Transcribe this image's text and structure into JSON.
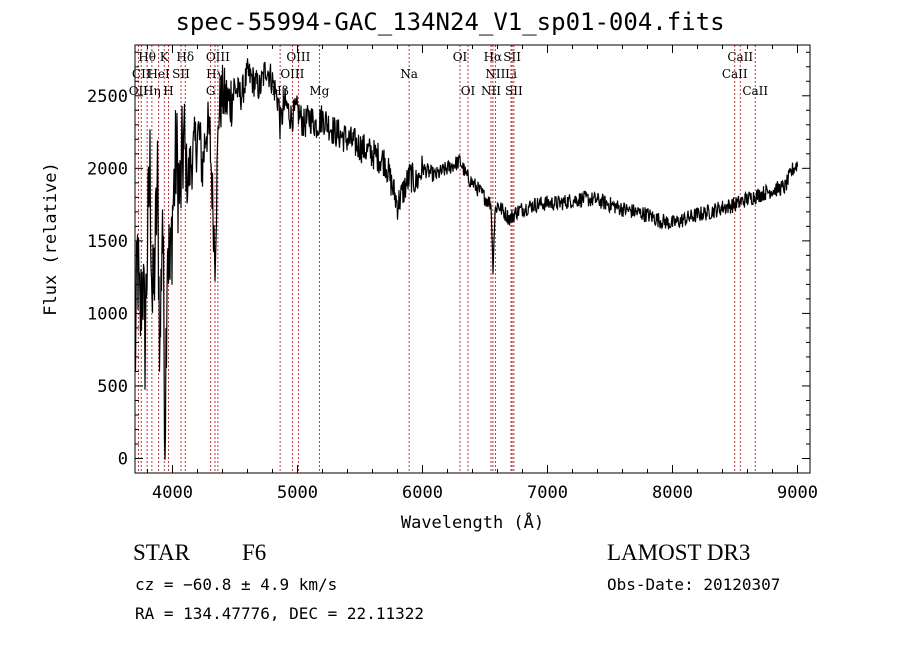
{
  "chart_data": {
    "type": "line",
    "title": "spec-55994-GAC_134N24_V1_sp01-004.fits",
    "xlabel": "Wavelength (Å)",
    "ylabel": "Flux (relative)",
    "xlim": [
      3700,
      9100
    ],
    "ylim": [
      -100,
      2850
    ],
    "x_ticks": [
      4000,
      5000,
      6000,
      7000,
      8000,
      9000
    ],
    "y_ticks": [
      0,
      500,
      1000,
      1500,
      2000,
      2500
    ],
    "series": [
      {
        "name": "flux",
        "x": [
          3700,
          3720,
          3740,
          3760,
          3780,
          3800,
          3820,
          3840,
          3860,
          3880,
          3900,
          3920,
          3940,
          3960,
          3980,
          4000,
          4030,
          4060,
          4090,
          4120,
          4150,
          4180,
          4210,
          4240,
          4270,
          4300,
          4330,
          4340,
          4370,
          4400,
          4450,
          4500,
          4550,
          4600,
          4650,
          4700,
          4750,
          4800,
          4850,
          4860,
          4900,
          4950,
          5000,
          5050,
          5100,
          5150,
          5200,
          5300,
          5400,
          5500,
          5600,
          5700,
          5750,
          5800,
          5850,
          5900,
          5950,
          6000,
          6100,
          6200,
          6300,
          6350,
          6400,
          6450,
          6500,
          6550,
          6563,
          6580,
          6600,
          6650,
          6700,
          6750,
          6800,
          6900,
          7000,
          7100,
          7200,
          7300,
          7400,
          7500,
          7600,
          7700,
          7800,
          7900,
          8000,
          8100,
          8200,
          8300,
          8400,
          8500,
          8600,
          8700,
          8800,
          8900,
          8960,
          9000
        ],
        "y": [
          600,
          1400,
          900,
          1300,
          800,
          1500,
          2000,
          1000,
          1400,
          1900,
          700,
          1800,
          200,
          1600,
          1200,
          1700,
          2100,
          1800,
          2200,
          1900,
          2050,
          2150,
          2250,
          2000,
          2300,
          2200,
          1600,
          1400,
          2400,
          2500,
          2450,
          2550,
          2500,
          2650,
          2600,
          2550,
          2700,
          2600,
          2450,
          2300,
          2450,
          2350,
          2400,
          2300,
          2350,
          2300,
          2350,
          2250,
          2200,
          2150,
          2100,
          2050,
          1900,
          1750,
          1850,
          1950,
          1900,
          2000,
          1950,
          2000,
          2050,
          1950,
          1900,
          1850,
          1800,
          1750,
          1300,
          1700,
          1750,
          1700,
          1650,
          1700,
          1720,
          1750,
          1760,
          1760,
          1780,
          1790,
          1780,
          1750,
          1720,
          1700,
          1680,
          1640,
          1620,
          1650,
          1680,
          1700,
          1730,
          1750,
          1790,
          1820,
          1850,
          1870,
          1990,
          2030
        ]
      }
    ],
    "spectral_lines": [
      {
        "label": "Hθ",
        "x": 3797,
        "row": 1
      },
      {
        "label": "CII",
        "x": 3750,
        "row": 2
      },
      {
        "label": "OII",
        "x": 3727,
        "row": 3
      },
      {
        "label": "Hη",
        "x": 3835,
        "row": 3
      },
      {
        "label": "HeI",
        "x": 3889,
        "row": 2
      },
      {
        "label": "K",
        "x": 3934,
        "row": 1
      },
      {
        "label": "H",
        "x": 3968,
        "row": 3
      },
      {
        "label": "Hδ",
        "x": 4102,
        "row": 1
      },
      {
        "label": "SII",
        "x": 4068,
        "row": 2
      },
      {
        "label": "OIII",
        "x": 4363,
        "row": 1
      },
      {
        "label": "Hγ",
        "x": 4340,
        "row": 2
      },
      {
        "label": "G",
        "x": 4305,
        "row": 3
      },
      {
        "label": "OIII",
        "x": 5007,
        "row": 1
      },
      {
        "label": "OIII",
        "x": 4959,
        "row": 2
      },
      {
        "label": "Hβ",
        "x": 4861,
        "row": 3
      },
      {
        "label": "Mg",
        "x": 5175,
        "row": 3
      },
      {
        "label": "Na",
        "x": 5893,
        "row": 2
      },
      {
        "label": "OI",
        "x": 6300,
        "row": 1
      },
      {
        "label": "OI",
        "x": 6364,
        "row": 3
      },
      {
        "label": "Hα",
        "x": 6563,
        "row": 1
      },
      {
        "label": "SII",
        "x": 6717,
        "row": 1
      },
      {
        "label": "NII",
        "x": 6583,
        "row": 2
      },
      {
        "label": "Li",
        "x": 6708,
        "row": 2
      },
      {
        "label": "NII",
        "x": 6548,
        "row": 3
      },
      {
        "label": "SII",
        "x": 6731,
        "row": 3
      },
      {
        "label": "CaII",
        "x": 8542,
        "row": 1
      },
      {
        "label": "CaII",
        "x": 8498,
        "row": 2
      },
      {
        "label": "CaII",
        "x": 8662,
        "row": 3
      }
    ]
  },
  "info": {
    "object_class": "STAR",
    "subclass": "F6",
    "survey": "LAMOST DR3",
    "cz": "cz = −60.8 ± 4.9 km/s",
    "obs_date": "Obs-Date: 20120307",
    "coords": "RA = 134.47776, DEC =  22.11322"
  }
}
